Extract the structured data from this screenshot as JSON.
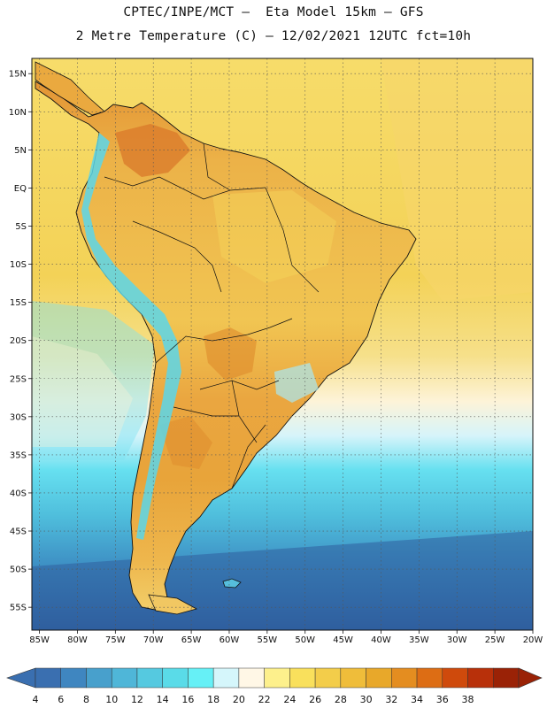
{
  "header": {
    "line1": "CPTEC/INPE/MCT –  Eta Model 15km – GFS",
    "line2": "2 Metre Temperature (C) – 12/02/2021 12UTC fct=10h"
  },
  "map": {
    "lon_range": [
      -86,
      -20
    ],
    "lat_range": [
      -58,
      17
    ],
    "lat_ticks": [
      "15N",
      "10N",
      "5N",
      "EQ",
      "5S",
      "10S",
      "15S",
      "20S",
      "25S",
      "30S",
      "35S",
      "40S",
      "45S",
      "50S",
      "55S"
    ],
    "lon_ticks": [
      "85W",
      "80W",
      "75W",
      "70W",
      "65W",
      "60W",
      "55W",
      "50W",
      "45W",
      "40W",
      "35W",
      "30W",
      "25W",
      "20W"
    ]
  },
  "colorbar": {
    "labels": [
      "4",
      "6",
      "8",
      "10",
      "12",
      "14",
      "16",
      "18",
      "20",
      "22",
      "24",
      "26",
      "28",
      "30",
      "32",
      "34",
      "36",
      "38"
    ],
    "colors": [
      "#3a6fb0",
      "#3f86c0",
      "#48a0cc",
      "#4fb6d8",
      "#55c9e0",
      "#5adbe8",
      "#66f0f6",
      "#d5f6fb",
      "#fff7e6",
      "#fdf08c",
      "#f9e05c",
      "#f3cd4a",
      "#efbd3a",
      "#e8a82a",
      "#e48d20",
      "#dd6d14",
      "#cf4a0c",
      "#b8300a",
      "#9a2206"
    ]
  },
  "colors": {
    "ocean_deep": "#2f5f9f",
    "ocean_mid": "#3f8ec6",
    "ocean_cool": "#5ad0e4",
    "ocean_warm": "#f3d560",
    "land_warm": "#efb84a",
    "land_hot": "#df8a28",
    "andes": "#5bd6ea"
  }
}
